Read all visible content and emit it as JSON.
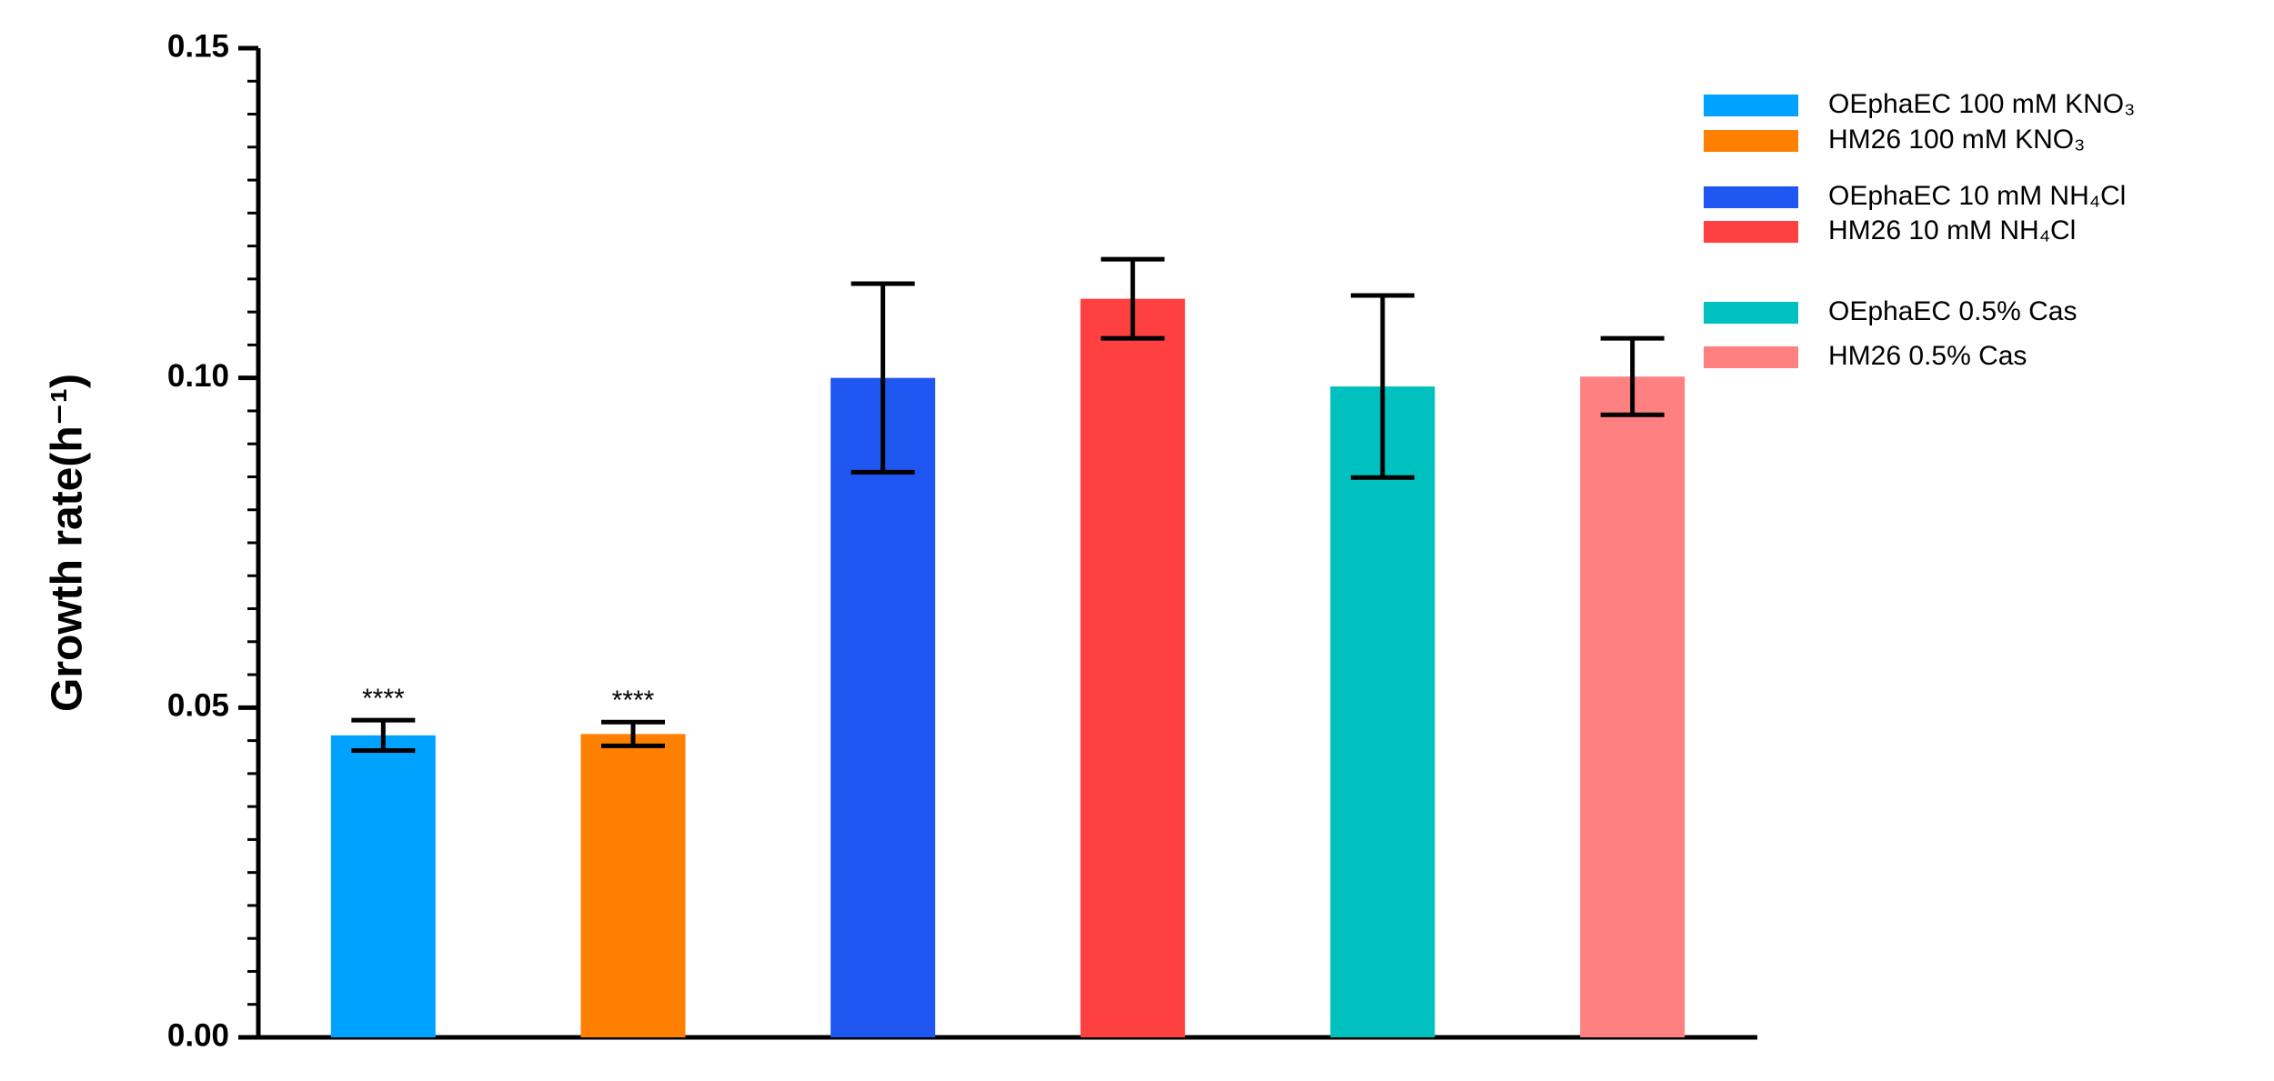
{
  "chart_data": {
    "type": "bar",
    "y_label": "Growth rate(h⁻¹)",
    "categories": [
      null,
      null,
      null,
      null,
      null,
      null
    ],
    "series": [
      {
        "name": "OEphaEC 100 mM KNO₃",
        "color": "#00a2ff",
        "values": [
          0.0458,
          null,
          null,
          null,
          null,
          null
        ],
        "errors": [
          0.0023,
          null,
          null,
          null,
          null,
          null
        ]
      },
      {
        "name": "HM26 100 mM KNO₃",
        "color": "#ff8000",
        "values": [
          null,
          0.046,
          null,
          null,
          null,
          null
        ],
        "errors": [
          null,
          0.0018,
          null,
          null,
          null,
          null
        ]
      },
      {
        "name": "OEphaEC 10 mM NH₄Cl",
        "color": "#1f55f0",
        "values": [
          null,
          null,
          0.1,
          null,
          null,
          null
        ],
        "errors": [
          null,
          null,
          0.0143,
          null,
          null,
          null
        ]
      },
      {
        "name": "HM26 10 mM NH₄Cl",
        "color": "#ff4040",
        "values": [
          null,
          null,
          null,
          0.112,
          null,
          null
        ],
        "errors": [
          null,
          null,
          null,
          0.006,
          null,
          null
        ]
      },
      {
        "name": "OEphaEC 0.5% Cas",
        "color": "#00c0c0",
        "values": [
          null,
          null,
          null,
          null,
          0.0987,
          null
        ],
        "errors": [
          null,
          null,
          null,
          null,
          0.0138,
          null
        ]
      },
      {
        "name": "HM26 0.5% Cas",
        "color": "#ff8080",
        "values": [
          null,
          null,
          null,
          null,
          null,
          0.1002
        ],
        "errors": [
          null,
          null,
          null,
          null,
          null,
          0.0058
        ]
      }
    ],
    "significance": [
      "****",
      "****",
      null,
      null,
      null,
      null
    ],
    "ylim": [
      0,
      0.15
    ],
    "yticks": [
      {
        "value": 0,
        "label": "0.00"
      },
      0.05,
      {
        "value": 0.1,
        "label": "0.10"
      },
      0.15
    ],
    "y_minor_divisions": 10,
    "grid": false
  }
}
